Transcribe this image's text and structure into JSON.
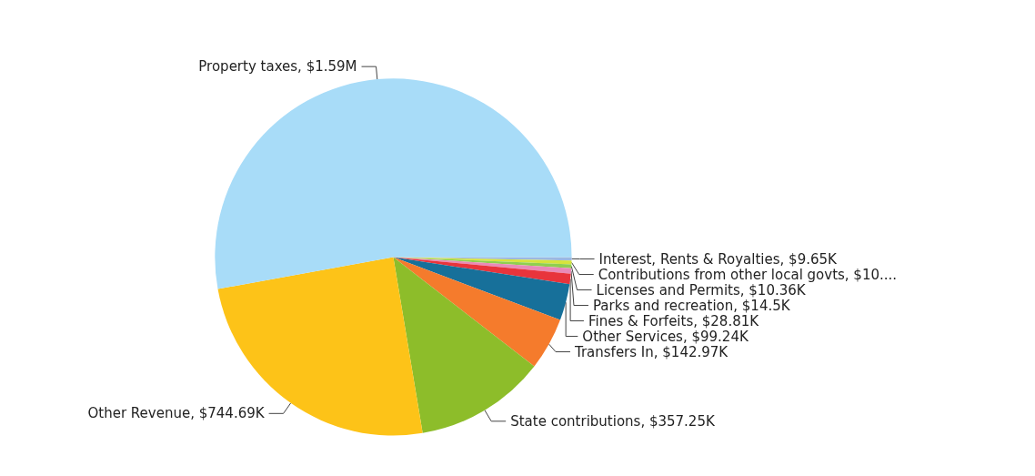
{
  "chart_data": {
    "type": "pie",
    "categories": [
      "Interest, Rents & Royalties",
      "Contributions from other local govts",
      "Licenses and Permits",
      "Parks and recreation",
      "Fines & Forfeits",
      "Other Services",
      "Transfers In",
      "State contributions",
      "Other Revenue",
      "Property taxes"
    ],
    "values": [
      9650,
      10000,
      10360,
      14500,
      28810,
      99240,
      142970,
      357250,
      744690,
      1590000
    ],
    "value_labels": [
      "$9.65K",
      "$10....",
      "$10.36K",
      "$14.5K",
      "$28.81K",
      "$99.24K",
      "$142.97K",
      "$357.25K",
      "$744.69K",
      "$1.59M"
    ],
    "colors": [
      "#9cb8e0",
      "#d6e43c",
      "#8fcf50",
      "#e98ab8",
      "#e8343c",
      "#17709a",
      "#f57b2c",
      "#8dbd2a",
      "#fdc318",
      "#a8dcf8"
    ],
    "legend": false
  }
}
